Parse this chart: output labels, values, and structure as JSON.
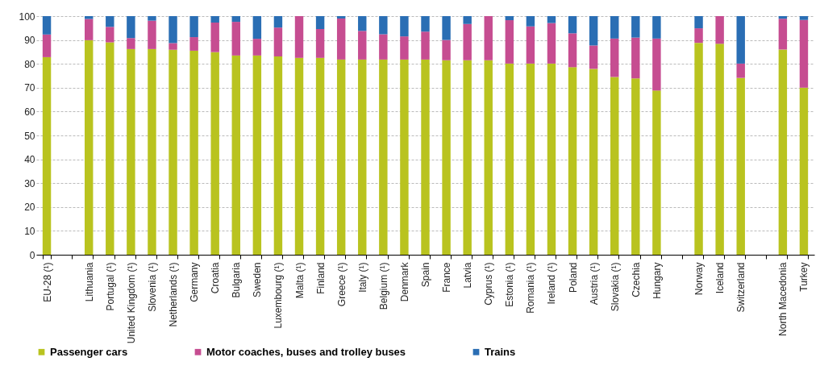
{
  "chart_data": {
    "type": "bar",
    "stacked": true,
    "categories": [
      "EU-28 (¹)",
      null,
      "Lithuania",
      "Portugal (¹)",
      "United Kingdom (¹)",
      "Slovenia (¹)",
      "Netherlands (¹)",
      "Germany",
      "Croatia",
      "Bulgaria",
      "Sweden",
      "Luxembourg (¹)",
      "Malta (¹)",
      "Finland",
      "Greece (¹)",
      "Italy (¹)",
      "Belgium (¹)",
      "Denmark",
      "Spain",
      "France",
      "Latvia",
      "Cyprus (¹)",
      "Estonia (¹)",
      "Romania (¹)",
      "Ireland (¹)",
      "Poland",
      "Austria (¹)",
      "Slovakia (¹)",
      "Czechia",
      "Hungary",
      null,
      "Norway",
      "Iceland",
      "Switzerland",
      null,
      "North Macedonia",
      "Turkey"
    ],
    "series": [
      {
        "name": "Passenger cars",
        "color": "#b9c31f",
        "values": [
          82.8,
          null,
          89.9,
          89.0,
          86.2,
          86.2,
          85.9,
          85.5,
          84.9,
          83.5,
          83.5,
          83.1,
          82.5,
          82.5,
          81.8,
          81.8,
          81.8,
          81.8,
          81.8,
          81.5,
          81.5,
          81.5,
          80.1,
          80.1,
          80.1,
          78.6,
          77.9,
          74.5,
          73.9,
          68.8,
          null,
          88.8,
          88.4,
          74.1,
          null,
          86.0,
          70.0
        ]
      },
      {
        "name": "Motor coaches, buses and trolley buses",
        "color": "#c64d91",
        "values": [
          9.5,
          null,
          8.9,
          6.5,
          4.6,
          11.9,
          2.8,
          5.7,
          12.4,
          14.1,
          7.0,
          12.1,
          17.5,
          12.1,
          17.2,
          12.0,
          10.6,
          9.7,
          11.7,
          8.5,
          15.2,
          18.5,
          18.2,
          15.6,
          17.0,
          14.2,
          9.8,
          16.1,
          17.1,
          21.8,
          null,
          6.1,
          11.6,
          6.0,
          null,
          12.9,
          28.4
        ]
      },
      {
        "name": "Trains",
        "color": "#2a6eb4",
        "values": [
          7.7,
          null,
          1.2,
          4.5,
          9.2,
          1.9,
          11.3,
          8.8,
          2.7,
          2.4,
          9.5,
          4.8,
          0,
          5.4,
          1.0,
          6.2,
          7.6,
          8.5,
          6.5,
          10.0,
          3.3,
          0,
          1.7,
          4.3,
          2.9,
          7.2,
          12.3,
          9.4,
          9.0,
          9.4,
          null,
          5.1,
          0,
          19.9,
          null,
          1.1,
          1.6
        ]
      }
    ],
    "ylim": [
      0,
      100
    ],
    "yticks": [
      0,
      10,
      20,
      30,
      40,
      50,
      60,
      70,
      80,
      90,
      100
    ],
    "grid": "y",
    "legend": "bottom"
  }
}
